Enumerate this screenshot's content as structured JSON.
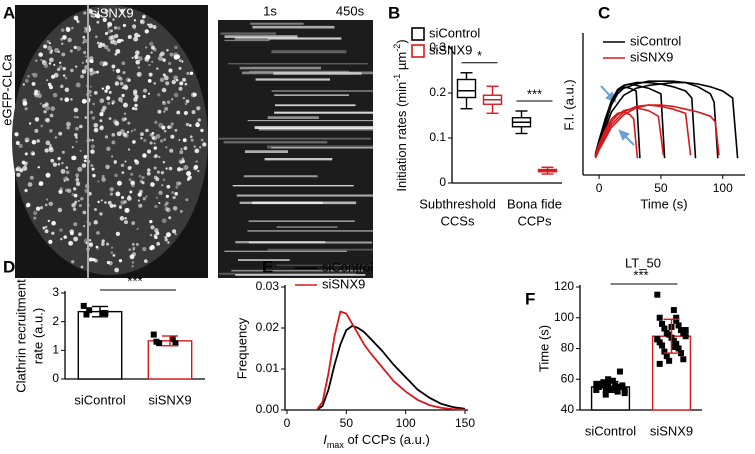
{
  "image_panel": {
    "panel_label": "A",
    "title": "siSNX9",
    "time_start": "1s",
    "time_end": "450s",
    "ylabel": "eGFP-CLCa"
  },
  "chart_data": [
    {
      "type": "box",
      "panel_label": "B",
      "ylabel": [
        "Initiation rates (min",
        "-1",
        " µm",
        "-2",
        ")"
      ],
      "categories": [
        [
          "Subthreshold",
          "CCSs"
        ],
        [
          "Bona fide",
          "CCPs"
        ]
      ],
      "ylim": [
        0,
        0.3
      ],
      "yticks": [
        0.0,
        0.1,
        0.2,
        0.3
      ],
      "significance": [
        "*",
        "***"
      ],
      "series": [
        {
          "name": "siControl",
          "color": "#000000",
          "min": [
            0.165,
            0.11
          ],
          "q1": [
            0.19,
            0.125
          ],
          "median": [
            0.205,
            0.135
          ],
          "q3": [
            0.23,
            0.145
          ],
          "max": [
            0.245,
            0.16
          ]
        },
        {
          "name": "siSNX9",
          "color": "#d7191c",
          "min": [
            0.155,
            0.02
          ],
          "q1": [
            0.175,
            0.025
          ],
          "median": [
            0.185,
            0.028
          ],
          "q3": [
            0.195,
            0.03
          ],
          "max": [
            0.215,
            0.035
          ]
        }
      ]
    },
    {
      "type": "line",
      "panel_label": "C",
      "ylabel": "F.I. (a.u.)",
      "xlabel": "Time (s)",
      "xlim": [
        -13,
        118
      ],
      "xticks": [
        0,
        50,
        100
      ],
      "ylim": [
        0,
        100
      ],
      "groups": [
        {
          "name": "siControl",
          "color": "#000000",
          "traces": [
            {
              "x": [
                -3,
                0,
                5,
                10,
                15,
                20,
                25,
                30,
                33
              ],
              "values": [
                15,
                25,
                40,
                52,
                60,
                63,
                62,
                60,
                12
              ]
            },
            {
              "x": [
                -3,
                0,
                5,
                10,
                15,
                20,
                25,
                30,
                40,
                50,
                53
              ],
              "values": [
                14,
                24,
                40,
                53,
                61,
                64,
                65,
                64,
                62,
                58,
                12
              ]
            },
            {
              "x": [
                -3,
                0,
                5,
                10,
                15,
                20,
                30,
                40,
                50,
                60,
                70,
                75,
                78
              ],
              "values": [
                13,
                22,
                38,
                52,
                60,
                64,
                66,
                66,
                65,
                63,
                60,
                55,
                12
              ]
            },
            {
              "x": [
                -3,
                0,
                5,
                10,
                15,
                20,
                30,
                40,
                50,
                60,
                70,
                80,
                90,
                93,
                96
              ],
              "values": [
                13,
                22,
                36,
                50,
                58,
                62,
                65,
                67,
                67,
                67,
                66,
                63,
                58,
                52,
                12
              ]
            },
            {
              "x": [
                -3,
                0,
                5,
                10,
                20,
                30,
                40,
                50,
                60,
                70,
                80,
                90,
                100,
                108,
                112
              ],
              "values": [
                13,
                20,
                33,
                45,
                57,
                62,
                64,
                65,
                66,
                66,
                65,
                63,
                60,
                55,
                12
              ]
            }
          ]
        },
        {
          "name": "siSNX9",
          "color": "#d7191c",
          "traces": [
            {
              "x": [
                -3,
                0,
                5,
                10,
                15,
                20,
                25,
                28,
                31
              ],
              "values": [
                14,
                22,
                32,
                40,
                44,
                45,
                43,
                40,
                12
              ]
            },
            {
              "x": [
                -3,
                0,
                5,
                10,
                15,
                20,
                30,
                40,
                48,
                52
              ],
              "values": [
                14,
                20,
                30,
                38,
                43,
                46,
                48,
                46,
                42,
                14
              ]
            },
            {
              "x": [
                -3,
                0,
                5,
                10,
                20,
                30,
                40,
                50,
                60,
                70,
                74
              ],
              "values": [
                13,
                19,
                28,
                36,
                45,
                49,
                50,
                49,
                47,
                44,
                14
              ]
            },
            {
              "x": [
                -3,
                0,
                5,
                10,
                20,
                30,
                40,
                50,
                60,
                70,
                80,
                90,
                94,
                97
              ],
              "values": [
                12,
                18,
                26,
                34,
                43,
                48,
                50,
                50,
                49,
                47,
                45,
                42,
                38,
                14
              ]
            }
          ]
        }
      ]
    },
    {
      "type": "bar",
      "panel_label": "D",
      "ylabel": [
        "Clathrin recruitment",
        "rate (a.u.)"
      ],
      "categories": [
        "siControl",
        "siSNX9"
      ],
      "colors": [
        "#000000",
        "#d7191c"
      ],
      "values": [
        2.35,
        1.33
      ],
      "errors": [
        0.18,
        0.17
      ],
      "points": [
        [
          2.55,
          2.3,
          2.25,
          2.3,
          2.4
        ],
        [
          1.55,
          1.4,
          1.3,
          1.25,
          1.25
        ]
      ],
      "ylim": [
        0,
        3
      ],
      "yticks": [
        0,
        1,
        2,
        3
      ],
      "significance": "***"
    },
    {
      "type": "curve",
      "panel_label": "E",
      "ylabel": "Frequency",
      "xlabel": [
        "I",
        "max",
        " of CCPs (a.u.)"
      ],
      "x": [
        25,
        30,
        35,
        40,
        45,
        50,
        55,
        60,
        65,
        70,
        80,
        90,
        100,
        110,
        120,
        130,
        140,
        150
      ],
      "series": [
        {
          "name": "siControl",
          "color": "#000000",
          "values": [
            0,
            0.001,
            0.005,
            0.011,
            0.016,
            0.0195,
            0.0205,
            0.02,
            0.019,
            0.0175,
            0.0145,
            0.011,
            0.008,
            0.005,
            0.003,
            0.0015,
            0.0007,
            0.0003
          ]
        },
        {
          "name": "siSNX9",
          "color": "#d7191c",
          "values": [
            0,
            0.002,
            0.009,
            0.018,
            0.024,
            0.0235,
            0.021,
            0.0185,
            0.016,
            0.014,
            0.0105,
            0.007,
            0.0045,
            0.0025,
            0.0012,
            0.0005,
            0.0002,
            0.0001
          ]
        }
      ],
      "xlim": [
        0,
        150
      ],
      "xticks": [
        0,
        50,
        100,
        150
      ],
      "ylim": [
        0,
        0.03
      ],
      "yticks": [
        {
          "value": 0,
          "label": "0.00"
        },
        {
          "value": 0.01,
          "label": "0.01"
        },
        {
          "value": 0.02,
          "label": "0.02"
        },
        {
          "value": 0.03,
          "label": "0.03"
        }
      ]
    },
    {
      "type": "bar",
      "panel_label": "F",
      "title": "LT_50",
      "ylabel": "Time (s)",
      "categories": [
        "siControl",
        "siSNX9"
      ],
      "colors": [
        "#000000",
        "#d7191c"
      ],
      "values": [
        55,
        88
      ],
      "errors": [
        3.5,
        11
      ],
      "points": [
        [
          53,
          54,
          55,
          56,
          57,
          52,
          58,
          55,
          54,
          56,
          60,
          51,
          53,
          57,
          59,
          55,
          54,
          56,
          52,
          58,
          65,
          50,
          55,
          57,
          53
        ],
        [
          115,
          105,
          100,
          98,
          96,
          95,
          93,
          92,
          90,
          90,
          89,
          88,
          87,
          86,
          85,
          84,
          83,
          82,
          80,
          78,
          77,
          75,
          73,
          72,
          92,
          94,
          86,
          81,
          70,
          100
        ]
      ],
      "ylim": [
        40,
        120
      ],
      "yticks": [
        40,
        60,
        80,
        100,
        120
      ],
      "significance": "***"
    }
  ]
}
